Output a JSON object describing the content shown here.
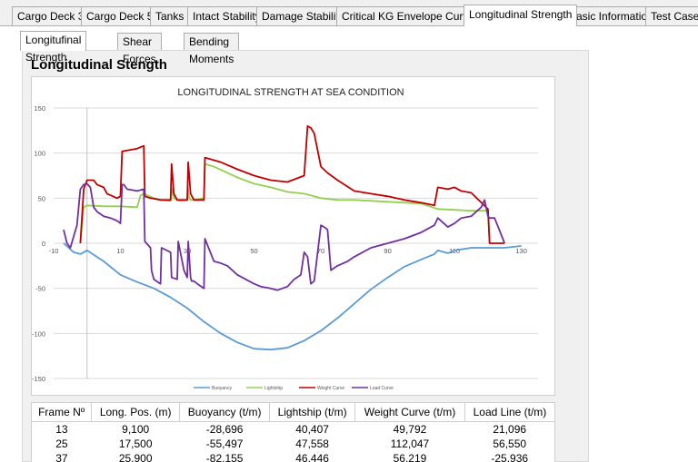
{
  "tabs": [
    {
      "label": "Cargo Deck 3",
      "active": false
    },
    {
      "label": "Cargo Deck 5",
      "active": false
    },
    {
      "label": "Tanks",
      "active": false
    },
    {
      "label": "Intact Stability",
      "active": false
    },
    {
      "label": "Damage Stability",
      "active": false
    },
    {
      "label": "Critical KG Envelope Curves",
      "active": false
    },
    {
      "label": "Longitudinal Strength",
      "active": true
    },
    {
      "label": "Basic Information",
      "active": false
    },
    {
      "label": "Test Cases",
      "active": false
    }
  ],
  "sub_tabs": [
    {
      "label": "Longitufinal Strength",
      "active": true
    },
    {
      "label": "Shear Forces",
      "active": false
    },
    {
      "label": "Bending Moments",
      "active": false
    }
  ],
  "panel_title": "Longitudinal Stength",
  "chart_data": {
    "type": "line",
    "title": "LONGITUDINAL STRENGTH AT SEA CONDITION",
    "xlim": [
      -10,
      135
    ],
    "ylim": [
      -150,
      150
    ],
    "x_ticks": [
      -10,
      10,
      30,
      50,
      70,
      90,
      110,
      130
    ],
    "y_ticks": [
      150,
      100,
      50,
      0,
      -50,
      -100,
      -150
    ],
    "grid": true,
    "legend_position": "bottom",
    "series": [
      {
        "name": "Buoyancy",
        "color": "#5b9bd5",
        "x": [
          -7,
          -4,
          -2,
          0,
          5,
          10,
          15,
          20,
          25,
          30,
          35,
          40,
          45,
          50,
          55,
          60,
          65,
          70,
          75,
          80,
          85,
          90,
          95,
          100,
          104,
          105,
          108,
          110,
          115,
          120,
          125,
          130
        ],
        "y": [
          0,
          -10,
          -12,
          -8,
          -20,
          -35,
          -43,
          -50,
          -60,
          -72,
          -87,
          -100,
          -110,
          -117,
          -118,
          -116,
          -108,
          -97,
          -83,
          -67,
          -51,
          -38,
          -26,
          -18,
          -12,
          -8,
          -11,
          -8,
          -5,
          -5,
          -5,
          -3
        ]
      },
      {
        "name": "Lightship",
        "color": "#92d050",
        "x": [
          -2,
          -1,
          0,
          5,
          10,
          15,
          16,
          17,
          20,
          22,
          25,
          25.5,
          26,
          27,
          28,
          30,
          30.2,
          30.6,
          31,
          32,
          35,
          35.3,
          38,
          45,
          50,
          55,
          60,
          65,
          70,
          75,
          80,
          85,
          90,
          95,
          100,
          105,
          110,
          115,
          120,
          120.5
        ],
        "y": [
          0,
          40,
          42,
          41,
          41,
          40,
          53,
          55,
          50,
          48,
          47,
          60,
          50,
          48,
          47,
          48,
          61,
          50,
          48,
          48,
          50,
          88,
          85,
          73,
          66,
          62,
          57,
          55,
          50,
          48,
          48,
          47,
          46,
          45,
          44,
          38,
          37,
          36,
          36,
          0
        ]
      },
      {
        "name": "Weight Curve",
        "color": "#c00000",
        "x": [
          -2,
          -1,
          0,
          2,
          3,
          5,
          6,
          9,
          10,
          10.5,
          15,
          17,
          17.3,
          19,
          22,
          25,
          25.3,
          26,
          27,
          30,
          30.3,
          31,
          32,
          35,
          35.3,
          40,
          45,
          50,
          55,
          60,
          65,
          66,
          67,
          68,
          70,
          72,
          75,
          80,
          85,
          90,
          95,
          100,
          104,
          105,
          108,
          110,
          112,
          115,
          120,
          120.5,
          121,
          123,
          125
        ],
        "y": [
          0,
          60,
          70,
          70,
          65,
          62,
          55,
          50,
          52,
          102,
          105,
          108,
          52,
          50,
          48,
          48,
          88,
          55,
          48,
          48,
          90,
          55,
          48,
          48,
          95,
          90,
          82,
          75,
          70,
          68,
          75,
          130,
          128,
          122,
          85,
          78,
          70,
          58,
          55,
          52,
          48,
          45,
          42,
          62,
          60,
          62,
          58,
          56,
          38,
          0,
          0,
          0,
          0
        ]
      },
      {
        "name": "Load Curve",
        "color": "#7030a0",
        "x": [
          -7,
          -6,
          -5,
          -3,
          -2,
          -1,
          0,
          1,
          2,
          3,
          5,
          7,
          9,
          10,
          10.5,
          11,
          12,
          15,
          17,
          17.3,
          19,
          19.3,
          20,
          22,
          22.3,
          25,
          25.3,
          27,
          27.3,
          29,
          30,
          30.3,
          31,
          31.3,
          32,
          33,
          35,
          35.3,
          38,
          40,
          42,
          45,
          50,
          52,
          55,
          57,
          60,
          62,
          64,
          65,
          66,
          67,
          68,
          70,
          71,
          72,
          73,
          75,
          78,
          80,
          85,
          90,
          95,
          100,
          104,
          105,
          108,
          110,
          112,
          115,
          118,
          119,
          120,
          120.5,
          122,
          125
        ],
        "y": [
          15,
          0,
          -5,
          20,
          60,
          65,
          66,
          62,
          40,
          35,
          30,
          28,
          25,
          22,
          65,
          65,
          60,
          58,
          60,
          2,
          -5,
          -30,
          -40,
          -45,
          -5,
          -10,
          -38,
          -40,
          2,
          -30,
          -38,
          2,
          -38,
          -42,
          -42,
          -45,
          -50,
          5,
          -20,
          -22,
          -25,
          -35,
          -45,
          -48,
          -50,
          -52,
          -48,
          -40,
          -35,
          -10,
          -15,
          -45,
          -42,
          20,
          18,
          15,
          -30,
          -25,
          -20,
          -15,
          -5,
          0,
          5,
          12,
          20,
          28,
          18,
          22,
          28,
          30,
          40,
          48,
          30,
          28,
          28,
          0
        ]
      }
    ]
  },
  "table": {
    "columns": [
      "Frame Nº",
      "Long. Pos. (m)",
      "Buoyancy (t/m)",
      "Lightship (t/m)",
      "Weight Curve (t/m)",
      "Load Line (t/m)"
    ],
    "rows": [
      [
        "13",
        "9,100",
        "-28,696",
        "40,407",
        "49,792",
        "21,096"
      ],
      [
        "25",
        "17,500",
        "-55,497",
        "47,558",
        "112,047",
        "56,550"
      ],
      [
        "37",
        "25,900",
        "-82,155",
        "46,446",
        "56,219",
        "-25,936"
      ]
    ]
  }
}
